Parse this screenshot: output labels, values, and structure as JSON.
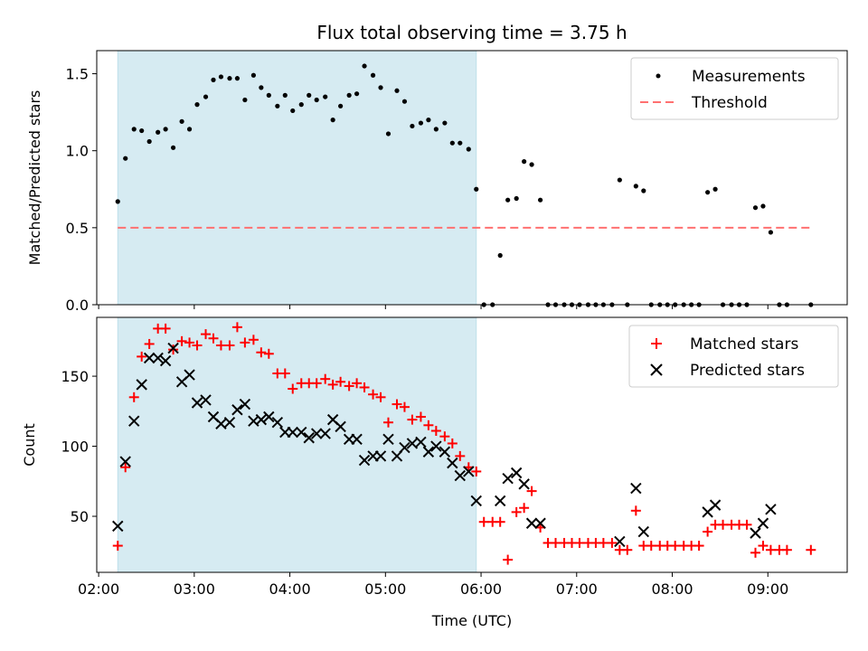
{
  "chart_data": {
    "title": "Flux total observing time = 3.75 h",
    "x_axis": {
      "label": "Time (UTC)",
      "unit": "hours UTC (decimal)",
      "range": [
        1.98,
        9.83
      ],
      "ticks": [
        2,
        3,
        4,
        5,
        6,
        7,
        8,
        9
      ],
      "tick_labels": [
        "02:00",
        "03:00",
        "04:00",
        "05:00",
        "06:00",
        "07:00",
        "08:00",
        "09:00"
      ]
    },
    "shaded_interval": {
      "start": 2.2,
      "end": 5.95,
      "color": "#add8e6"
    },
    "colors": {
      "measurements": "#000000",
      "threshold": "#ff7070",
      "matched": "#ff0000",
      "predicted": "#000000"
    },
    "top_panel": {
      "type": "scatter",
      "ylabel": "Matched/Predicted stars",
      "ylim": [
        0,
        1.65
      ],
      "yticks": [
        0.0,
        0.5,
        1.0,
        1.5
      ],
      "ytick_labels": [
        "0.0",
        "0.5",
        "1.0",
        "1.5"
      ],
      "legend": {
        "placement": "top-right",
        "measurements_label": "Measurements",
        "threshold_label": "Threshold"
      },
      "threshold": {
        "value": 0.5,
        "x_start": 2.2,
        "x_end": 9.45
      },
      "measurements": {
        "x": [
          2.2,
          2.28,
          2.37,
          2.45,
          2.53,
          2.62,
          2.7,
          2.78,
          2.87,
          2.95,
          3.03,
          3.12,
          3.2,
          3.28,
          3.37,
          3.45,
          3.53,
          3.62,
          3.7,
          3.78,
          3.87,
          3.95,
          4.03,
          4.12,
          4.2,
          4.28,
          4.37,
          4.45,
          4.53,
          4.62,
          4.7,
          4.78,
          4.87,
          4.95,
          5.03,
          5.12,
          5.2,
          5.28,
          5.37,
          5.45,
          5.53,
          5.62,
          5.7,
          5.78,
          5.87,
          5.95,
          6.03,
          6.12,
          6.2,
          6.28,
          6.37,
          6.45,
          6.53,
          6.62,
          6.7,
          6.78,
          6.87,
          6.95,
          7.03,
          7.12,
          7.2,
          7.28,
          7.37,
          7.45,
          7.53,
          7.62,
          7.7,
          7.78,
          7.87,
          7.95,
          8.03,
          8.12,
          8.2,
          8.28,
          8.37,
          8.45,
          8.53,
          8.62,
          8.7,
          8.78,
          8.87,
          8.95,
          9.03,
          9.12,
          9.2,
          9.45
        ],
        "y": [
          0.67,
          0.95,
          1.14,
          1.13,
          1.06,
          1.12,
          1.14,
          1.02,
          1.19,
          1.14,
          1.3,
          1.35,
          1.46,
          1.48,
          1.47,
          1.47,
          1.33,
          1.49,
          1.41,
          1.36,
          1.29,
          1.36,
          1.26,
          1.3,
          1.36,
          1.33,
          1.35,
          1.2,
          1.29,
          1.36,
          1.37,
          1.55,
          1.49,
          1.41,
          1.11,
          1.39,
          1.32,
          1.16,
          1.18,
          1.2,
          1.14,
          1.18,
          1.05,
          1.05,
          1.01,
          0.75,
          0.0,
          0.0,
          0.32,
          0.68,
          0.69,
          0.93,
          0.91,
          0.68,
          0.0,
          0.0,
          0.0,
          0.0,
          0.0,
          0.0,
          0.0,
          0.0,
          0.0,
          0.81,
          0.0,
          0.77,
          0.74,
          0.0,
          0.0,
          0.0,
          0.0,
          0.0,
          0.0,
          0.0,
          0.73,
          0.75,
          0.0,
          0.0,
          0.0,
          0.0,
          0.63,
          0.64,
          0.47,
          0.0,
          0.0,
          0.0
        ]
      }
    },
    "bottom_panel": {
      "type": "scatter",
      "ylabel": "Count",
      "ylim": [
        10,
        192
      ],
      "yticks": [
        50,
        100,
        150
      ],
      "ytick_labels": [
        "50",
        "100",
        "150"
      ],
      "legend": {
        "placement": "top-right",
        "matched_label": "Matched stars",
        "predicted_label": "Predicted stars"
      },
      "matched_stars": {
        "x": [
          2.2,
          2.28,
          2.37,
          2.45,
          2.53,
          2.62,
          2.7,
          2.78,
          2.87,
          2.95,
          3.03,
          3.12,
          3.2,
          3.28,
          3.37,
          3.45,
          3.53,
          3.62,
          3.7,
          3.78,
          3.87,
          3.95,
          4.03,
          4.12,
          4.2,
          4.28,
          4.37,
          4.45,
          4.53,
          4.62,
          4.7,
          4.78,
          4.87,
          4.95,
          5.03,
          5.12,
          5.2,
          5.28,
          5.37,
          5.45,
          5.53,
          5.62,
          5.7,
          5.78,
          5.87,
          5.95,
          6.03,
          6.12,
          6.2,
          6.28,
          6.37,
          6.45,
          6.53,
          6.62,
          6.7,
          6.78,
          6.87,
          6.95,
          7.03,
          7.12,
          7.2,
          7.28,
          7.37,
          7.45,
          7.53,
          7.62,
          7.7,
          7.78,
          7.87,
          7.95,
          8.03,
          8.12,
          8.2,
          8.28,
          8.37,
          8.45,
          8.53,
          8.62,
          8.7,
          8.78,
          8.87,
          8.95,
          9.03,
          9.12,
          9.2,
          9.45
        ],
        "y": [
          29,
          85,
          135,
          164,
          173,
          184,
          184,
          169,
          175,
          174,
          172,
          180,
          177,
          172,
          172,
          185,
          174,
          176,
          167,
          166,
          152,
          152,
          141,
          145,
          145,
          145,
          148,
          144,
          146,
          143,
          145,
          142,
          137,
          135,
          117,
          130,
          128,
          119,
          121,
          115,
          111,
          107,
          102,
          93,
          85,
          82,
          46,
          46,
          46,
          19,
          53,
          56,
          68,
          42,
          31,
          31,
          31,
          31,
          31,
          31,
          31,
          31,
          31,
          26,
          26,
          54,
          29,
          29,
          29,
          29,
          29,
          29,
          29,
          29,
          39,
          44,
          44,
          44,
          44,
          44,
          24,
          29,
          26,
          26,
          26,
          26
        ]
      },
      "predicted_stars": {
        "x": [
          2.2,
          2.28,
          2.37,
          2.45,
          2.53,
          2.62,
          2.7,
          2.78,
          2.87,
          2.95,
          3.03,
          3.12,
          3.2,
          3.28,
          3.37,
          3.45,
          3.53,
          3.62,
          3.7,
          3.78,
          3.87,
          3.95,
          4.03,
          4.12,
          4.2,
          4.28,
          4.37,
          4.45,
          4.53,
          4.62,
          4.7,
          4.78,
          4.87,
          4.95,
          5.03,
          5.12,
          5.2,
          5.28,
          5.37,
          5.45,
          5.53,
          5.62,
          5.7,
          5.78,
          5.87,
          5.95,
          6.2,
          6.28,
          6.37,
          6.45,
          6.53,
          6.62,
          7.45,
          7.62,
          7.7,
          8.37,
          8.45,
          8.87,
          8.95,
          9.03
        ],
        "y": [
          43,
          89,
          118,
          144,
          163,
          163,
          161,
          170,
          146,
          151,
          131,
          133,
          121,
          116,
          117,
          126,
          130,
          118,
          119,
          121,
          117,
          110,
          110,
          110,
          106,
          109,
          109,
          119,
          114,
          105,
          105,
          90,
          93,
          93,
          105,
          93,
          99,
          102,
          103,
          96,
          100,
          96,
          88,
          79,
          82,
          61,
          61,
          77,
          81,
          73,
          45,
          45,
          32,
          70,
          39,
          53,
          58,
          38,
          45,
          55
        ]
      }
    }
  }
}
